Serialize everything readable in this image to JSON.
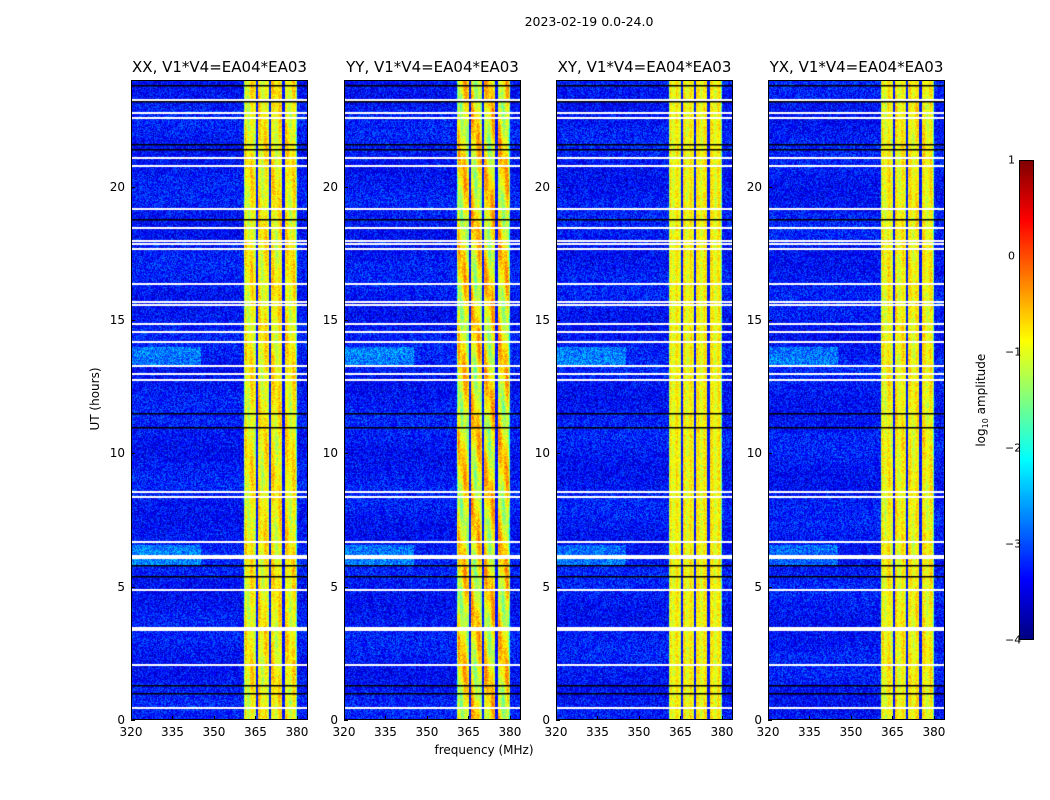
{
  "suptitle": "2023-02-19 0.0-24.0",
  "xlabel": "frequency (MHz)",
  "ylabel": "UT (hours)",
  "colorbar": {
    "label_prefix": "log",
    "label_sub": "10",
    "label_suffix": " amplitude",
    "ticks": [
      "1",
      "0",
      "−1",
      "−2",
      "−3",
      "−4"
    ],
    "range": [
      -4,
      1
    ],
    "colormap": "jet"
  },
  "chart_data": {
    "type": "heatmap",
    "x_range_mhz": [
      320,
      384
    ],
    "y_range_hours": [
      0,
      24
    ],
    "x_ticks": [
      "320",
      "335",
      "350",
      "365",
      "380"
    ],
    "x_tick_values": [
      320,
      335,
      350,
      365,
      380
    ],
    "y_ticks": [
      "0",
      "5",
      "10",
      "15",
      "20"
    ],
    "y_tick_values": [
      0,
      5,
      10,
      15,
      20
    ],
    "background_log_amp": -3.3,
    "band": {
      "start_mhz": 360.5,
      "end_mhz": 380,
      "log_amp": -0.9,
      "dark_channels_mhz": [
        365.3,
        370,
        375
      ]
    },
    "flagged_white_hours": [
      0.5,
      2.1,
      3.4,
      3.5,
      4.9,
      6.1,
      6.2,
      6.7,
      8.4,
      8.6,
      12.8,
      13.0,
      13.3,
      14.2,
      14.6,
      14.9,
      15.6,
      15.7,
      16.4,
      17.7,
      17.9,
      18.0,
      18.5,
      19.2,
      20.8,
      21.1,
      22.6,
      22.8,
      23.3
    ],
    "dark_line_hours": [
      1.0,
      1.3,
      5.4,
      5.8,
      11.0,
      11.5,
      18.8,
      21.4,
      21.6,
      23.2,
      23.8
    ],
    "panels": [
      {
        "title": "XX, V1*V4=EA04*EA03",
        "band_boost": 0.2
      },
      {
        "title": "YY, V1*V4=EA04*EA03",
        "band_boost": 0.45
      },
      {
        "title": "XY, V1*V4=EA04*EA03",
        "band_boost": 0.0
      },
      {
        "title": "YX, V1*V4=EA04*EA03",
        "band_boost": 0.1
      }
    ]
  }
}
